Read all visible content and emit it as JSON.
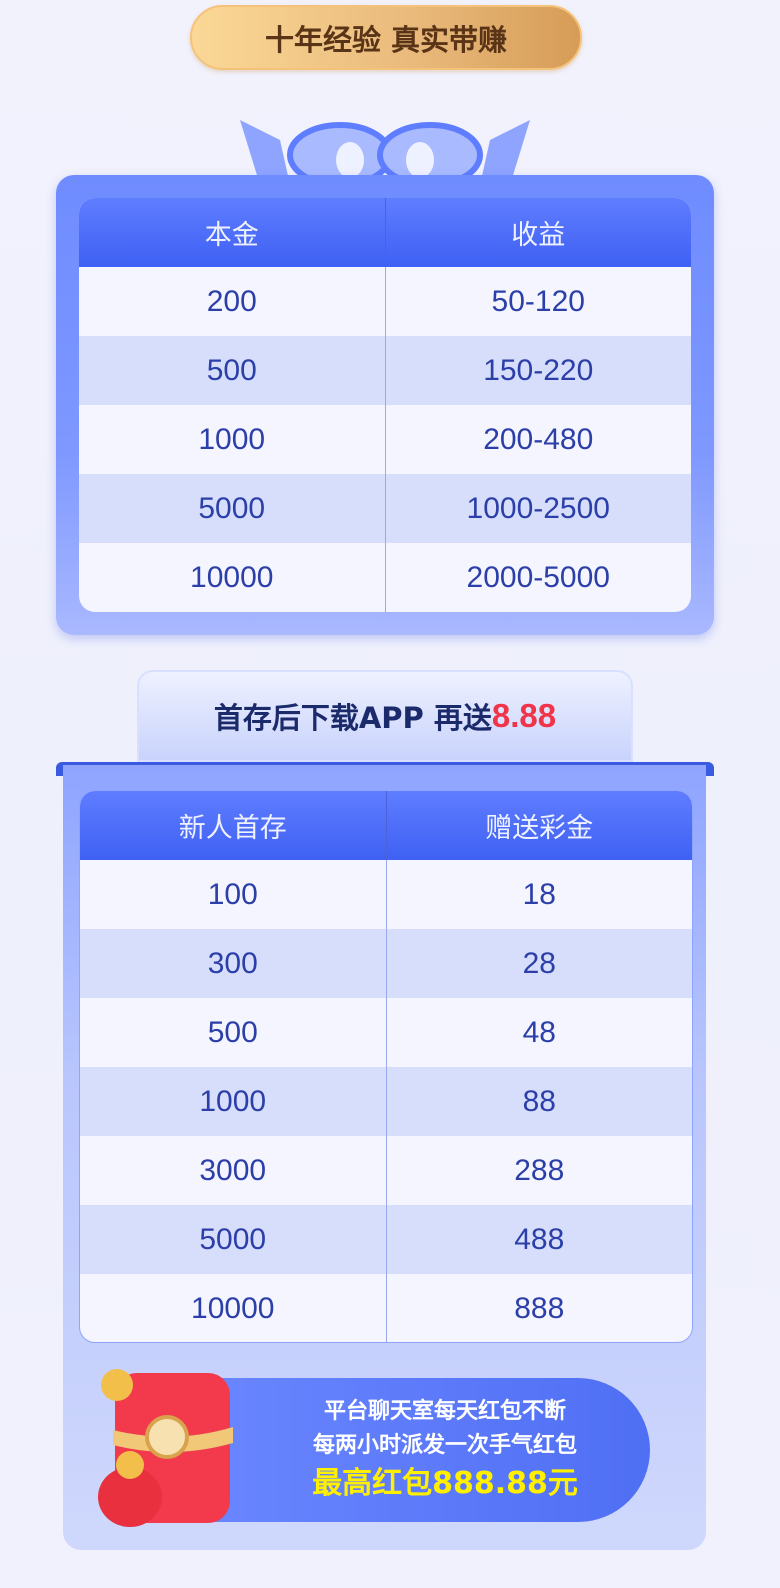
{
  "title": "十年经验 真实带赚",
  "table1": {
    "headers": [
      "本金",
      "收益"
    ],
    "rows": [
      [
        "200",
        "50-120"
      ],
      [
        "500",
        "150-220"
      ],
      [
        "1000",
        "200-480"
      ],
      [
        "5000",
        "1000-2500"
      ],
      [
        "10000",
        "2000-5000"
      ]
    ]
  },
  "banner": {
    "text": "首存后下载APP 再送",
    "highlight": "8.88"
  },
  "table2": {
    "headers": [
      "新人首存",
      "赠送彩金"
    ],
    "rows": [
      [
        "100",
        "18"
      ],
      [
        "300",
        "28"
      ],
      [
        "500",
        "48"
      ],
      [
        "1000",
        "88"
      ],
      [
        "3000",
        "288"
      ],
      [
        "5000",
        "488"
      ],
      [
        "10000",
        "888"
      ]
    ]
  },
  "promo": {
    "line1": "平台聊天室每天红包不断",
    "line2": "每两小时派发一次手气红包",
    "line3": "最高红包888.88元",
    "icon": "red-envelope-icon"
  },
  "colors": {
    "accent": "#4a6cf7",
    "highlight_red": "#f0344a",
    "highlight_yellow": "#fff000",
    "gold": "#e8b879"
  }
}
